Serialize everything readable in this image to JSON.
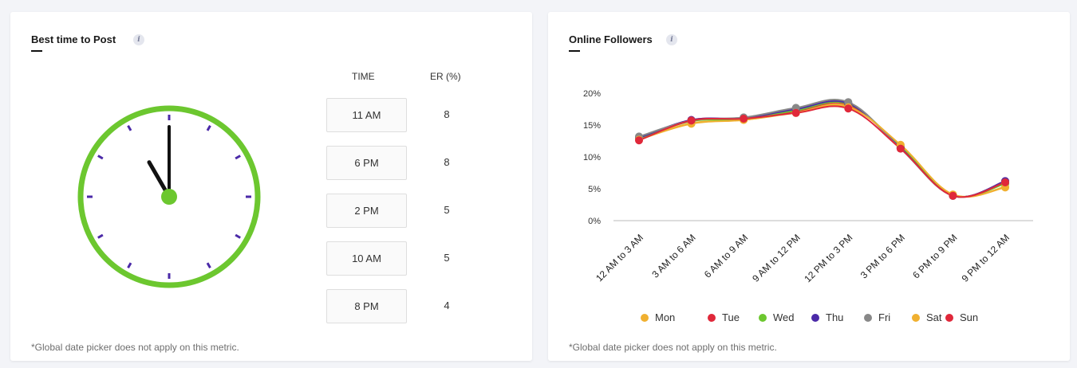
{
  "best_time": {
    "title": "Best time to Post",
    "info": "i",
    "columns": {
      "time": "TIME",
      "er": "ER (%)"
    },
    "rows": [
      {
        "time": "11 AM",
        "er": "8"
      },
      {
        "time": "6 PM",
        "er": "8"
      },
      {
        "time": "2 PM",
        "er": "5"
      },
      {
        "time": "10 AM",
        "er": "5"
      },
      {
        "time": "8 PM",
        "er": "4"
      }
    ],
    "clock": {
      "hour": 11,
      "minute": 0,
      "ring_color": "#6cc72f",
      "tick_color": "#4b2aa8",
      "hand_color": "#111111"
    },
    "footnote": "*Global date picker does not apply on this metric."
  },
  "online_followers": {
    "title": "Online Followers",
    "info": "i",
    "footnote": "*Global date picker does not apply on this metric."
  },
  "chart_data": {
    "type": "line",
    "title": "",
    "xlabel": "",
    "ylabel": "",
    "categories": [
      "12 AM to 3 AM",
      "3 AM to 6 AM",
      "6 AM to 9 AM",
      "9 AM to 12 PM",
      "12 PM to 3 PM",
      "3 PM to 6 PM",
      "6 PM to 9 PM",
      "9 PM to 12 AM"
    ],
    "y_ticks": [
      "0%",
      "5%",
      "10%",
      "15%",
      "20%"
    ],
    "ylim": [
      0,
      20
    ],
    "grid": false,
    "legend_position": "bottom",
    "series": [
      {
        "name": "Mon",
        "color": "#f0b030",
        "values": [
          12.8,
          15.3,
          15.8,
          17.0,
          18.0,
          11.8,
          4.1,
          5.3
        ]
      },
      {
        "name": "Tue",
        "color": "#e0283a",
        "values": [
          12.9,
          15.8,
          16.0,
          17.2,
          18.2,
          11.5,
          3.9,
          6.2
        ]
      },
      {
        "name": "Wed",
        "color": "#6cc72f",
        "values": [
          12.9,
          15.6,
          15.9,
          17.3,
          18.3,
          11.6,
          4.0,
          5.8
        ]
      },
      {
        "name": "Thu",
        "color": "#4b2aa8",
        "values": [
          13.0,
          15.8,
          16.1,
          17.5,
          18.4,
          11.4,
          3.9,
          6.2
        ]
      },
      {
        "name": "Fri",
        "color": "#888888",
        "values": [
          13.2,
          15.7,
          16.2,
          17.7,
          18.6,
          11.3,
          3.9,
          6.0
        ]
      },
      {
        "name": "Sat",
        "color": "#f0b030",
        "values": [
          12.7,
          15.2,
          15.8,
          16.9,
          17.8,
          11.9,
          4.1,
          5.2
        ]
      },
      {
        "name": "Sun",
        "color": "#e0283a",
        "values": [
          12.6,
          15.7,
          16.0,
          16.9,
          17.6,
          11.3,
          3.9,
          6.0
        ]
      }
    ]
  }
}
